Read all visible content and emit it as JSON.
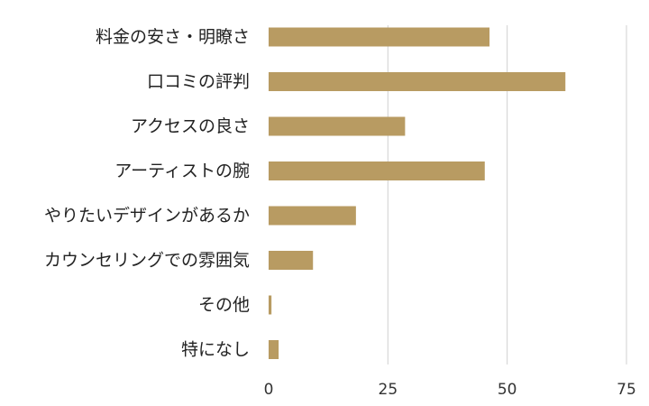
{
  "chart_data": {
    "type": "bar",
    "orientation": "horizontal",
    "title": "",
    "xlabel": "",
    "ylabel": "",
    "categories": [
      "料金の安さ・明瞭さ",
      "口コミの評判",
      "アクセスの良さ",
      "アーティストの腕",
      "やりたいデザインがあるか",
      "カウンセリングでの雰囲気",
      "その他",
      "特になし"
    ],
    "values": [
      46.3,
      62.2,
      28.6,
      45.3,
      18.3,
      9.3,
      0.6,
      2.1
    ],
    "xlim": [
      0,
      75
    ],
    "xticks": [
      0,
      25,
      50,
      75
    ],
    "xtick_labels": [
      "0",
      "25",
      "50",
      "75"
    ],
    "grid": "vertical",
    "legend": "none",
    "bar_color": "#b89b62",
    "grid_color": "#d0d0d0"
  }
}
